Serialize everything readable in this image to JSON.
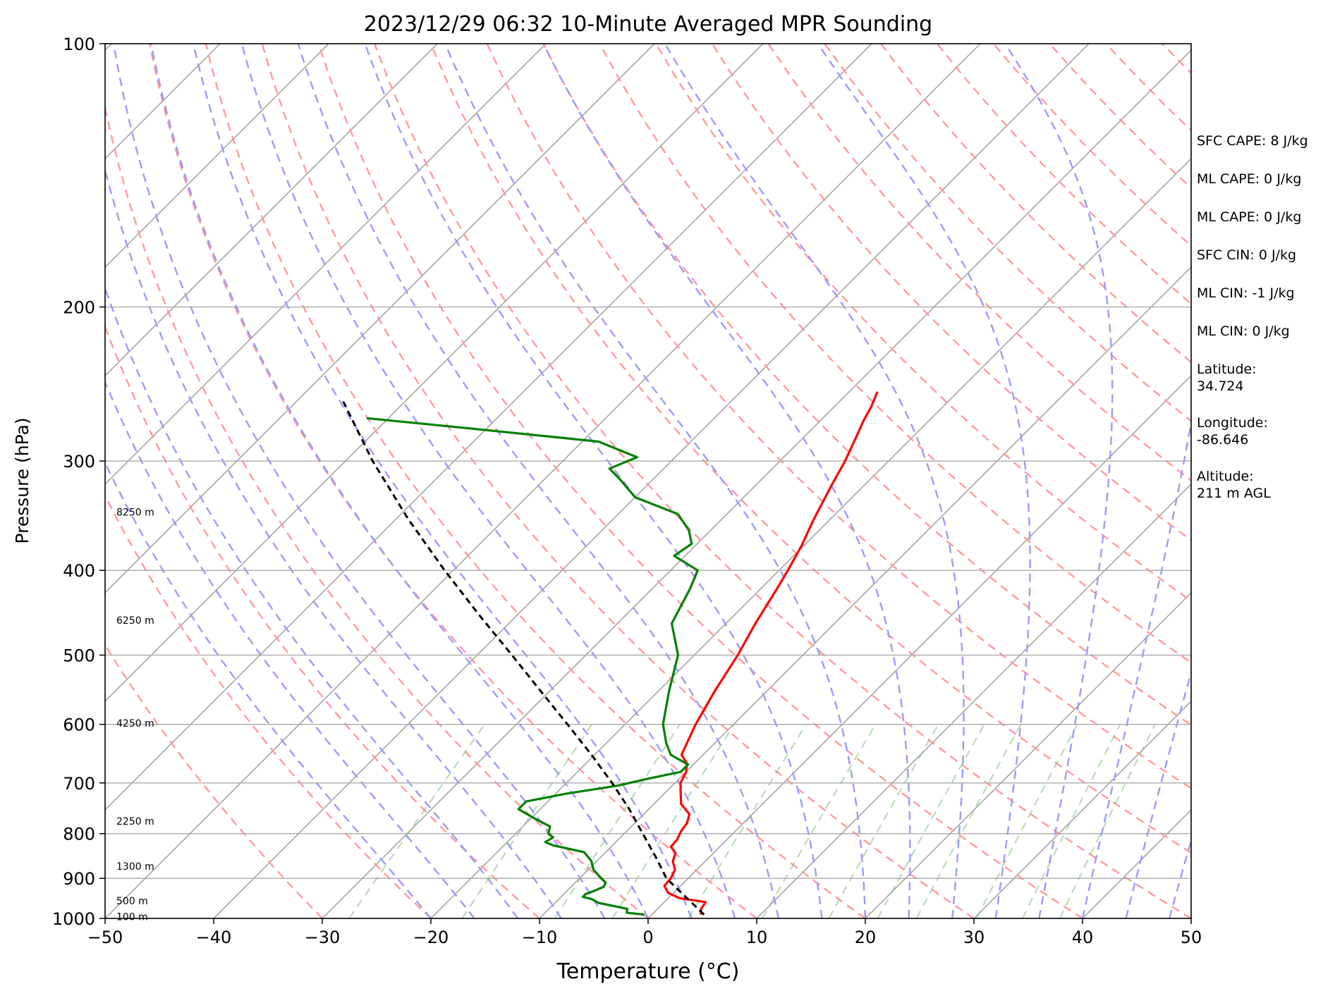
{
  "chart_data": {
    "type": "line",
    "title": "2023/12/29 06:32 10-Minute Averaged MPR Sounding",
    "xlabel": "Temperature (°C)",
    "ylabel": "Pressure (hPa)",
    "xlim": [
      -50,
      50
    ],
    "ylim": [
      1000,
      100
    ],
    "yscale": "log",
    "x_ticks": [
      -50,
      -40,
      -30,
      -20,
      -10,
      0,
      10,
      20,
      30,
      40,
      50
    ],
    "x_tick_labels": [
      "−50",
      "−40",
      "−30",
      "−20",
      "−10",
      "0",
      "10",
      "20",
      "30",
      "40",
      "50"
    ],
    "y_ticks": [
      100,
      200,
      300,
      400,
      500,
      600,
      700,
      800,
      900,
      1000
    ],
    "y_tick_labels": [
      "100",
      "200",
      "300",
      "400",
      "500",
      "600",
      "700",
      "800",
      "900",
      "1000"
    ],
    "grid": true,
    "skew_deg": 45,
    "background_lines": {
      "isotherms_color": "#9a9a9a",
      "dry_adiabats_color": "#ff9a9a",
      "moist_adiabats_color": "#9a9aff",
      "mixing_ratio_color": "#7fbf7f"
    },
    "height_labels": [
      {
        "text": "8250 m",
        "pressure": 343
      },
      {
        "text": "6250 m",
        "pressure": 456
      },
      {
        "text": "4250 m",
        "pressure": 598
      },
      {
        "text": "2250 m",
        "pressure": 774
      },
      {
        "text": "1300 m",
        "pressure": 872
      },
      {
        "text": "500 m",
        "pressure": 955
      },
      {
        "text": "100 m",
        "pressure": 995
      }
    ],
    "series": [
      {
        "color": "#ff0000",
        "role": "temperature",
        "points": [
          {
            "p": 990,
            "t": 4.5
          },
          {
            "p": 975,
            "t": 4.0
          },
          {
            "p": 958,
            "t": 3.8
          },
          {
            "p": 948,
            "t": 1.0
          },
          {
            "p": 935,
            "t": -0.5
          },
          {
            "p": 918,
            "t": -1.5
          },
          {
            "p": 900,
            "t": -1.6
          },
          {
            "p": 880,
            "t": -2.0
          },
          {
            "p": 860,
            "t": -3.0
          },
          {
            "p": 842,
            "t": -3.5
          },
          {
            "p": 828,
            "t": -4.5
          },
          {
            "p": 812,
            "t": -4.6
          },
          {
            "p": 795,
            "t": -5.0
          },
          {
            "p": 778,
            "t": -5.2
          },
          {
            "p": 760,
            "t": -5.8
          },
          {
            "p": 740,
            "t": -7.5
          },
          {
            "p": 720,
            "t": -8.5
          },
          {
            "p": 700,
            "t": -9.5
          },
          {
            "p": 680,
            "t": -10.0
          },
          {
            "p": 665,
            "t": -10.7
          },
          {
            "p": 650,
            "t": -12.0
          },
          {
            "p": 600,
            "t": -13.5
          },
          {
            "p": 550,
            "t": -14.8
          },
          {
            "p": 500,
            "t": -16.0
          },
          {
            "p": 460,
            "t": -17.3
          },
          {
            "p": 420,
            "t": -18.5
          },
          {
            "p": 400,
            "t": -19.2
          },
          {
            "p": 375,
            "t": -20.2
          },
          {
            "p": 350,
            "t": -21.5
          },
          {
            "p": 320,
            "t": -23.0
          },
          {
            "p": 300,
            "t": -24.0
          },
          {
            "p": 280,
            "t": -25.3
          },
          {
            "p": 270,
            "t": -26.0
          },
          {
            "p": 260,
            "t": -26.6
          },
          {
            "p": 250,
            "t": -27.4
          }
        ]
      },
      {
        "color": "#008000",
        "role": "dewpoint",
        "points": [
          {
            "p": 990,
            "t": -0.7
          },
          {
            "p": 985,
            "t": -2.5
          },
          {
            "p": 975,
            "t": -2.8
          },
          {
            "p": 960,
            "t": -6.0
          },
          {
            "p": 955,
            "t": -6.5
          },
          {
            "p": 950,
            "t": -7.0
          },
          {
            "p": 945,
            "t": -8.0
          },
          {
            "p": 938,
            "t": -8.0
          },
          {
            "p": 930,
            "t": -7.5
          },
          {
            "p": 920,
            "t": -7.0
          },
          {
            "p": 910,
            "t": -7.2
          },
          {
            "p": 900,
            "t": -8.0
          },
          {
            "p": 880,
            "t": -9.5
          },
          {
            "p": 860,
            "t": -10.5
          },
          {
            "p": 840,
            "t": -12.0
          },
          {
            "p": 825,
            "t": -15.5
          },
          {
            "p": 818,
            "t": -16.5
          },
          {
            "p": 808,
            "t": -16.2
          },
          {
            "p": 800,
            "t": -17.0
          },
          {
            "p": 785,
            "t": -17.5
          },
          {
            "p": 770,
            "t": -19.5
          },
          {
            "p": 750,
            "t": -22.0
          },
          {
            "p": 735,
            "t": -22.0
          },
          {
            "p": 720,
            "t": -19.0
          },
          {
            "p": 705,
            "t": -15.0
          },
          {
            "p": 693,
            "t": -13.0
          },
          {
            "p": 680,
            "t": -10.5
          },
          {
            "p": 667,
            "t": -10.5
          },
          {
            "p": 650,
            "t": -13.0
          },
          {
            "p": 630,
            "t": -14.5
          },
          {
            "p": 600,
            "t": -16.5
          },
          {
            "p": 550,
            "t": -19.0
          },
          {
            "p": 500,
            "t": -21.5
          },
          {
            "p": 460,
            "t": -25.0
          },
          {
            "p": 420,
            "t": -26.5
          },
          {
            "p": 400,
            "t": -27.5
          },
          {
            "p": 385,
            "t": -31.0
          },
          {
            "p": 373,
            "t": -30.5
          },
          {
            "p": 360,
            "t": -32.0
          },
          {
            "p": 345,
            "t": -34.5
          },
          {
            "p": 330,
            "t": -40.0
          },
          {
            "p": 315,
            "t": -43.0
          },
          {
            "p": 306,
            "t": -45.0
          },
          {
            "p": 297,
            "t": -43.5
          },
          {
            "p": 285,
            "t": -48.5
          },
          {
            "p": 275,
            "t": -62.0
          },
          {
            "p": 268,
            "t": -72.0
          }
        ]
      },
      {
        "color": "#000000",
        "role": "parcel",
        "dashed": true,
        "points": [
          {
            "p": 990,
            "t": 4.8
          },
          {
            "p": 900,
            "t": -2.0
          },
          {
            "p": 850,
            "t": -5.0
          },
          {
            "p": 800,
            "t": -8.3
          },
          {
            "p": 750,
            "t": -11.8
          },
          {
            "p": 700,
            "t": -15.8
          },
          {
            "p": 650,
            "t": -20.3
          },
          {
            "p": 600,
            "t": -25.3
          },
          {
            "p": 550,
            "t": -30.8
          },
          {
            "p": 500,
            "t": -36.8
          },
          {
            "p": 450,
            "t": -43.5
          },
          {
            "p": 400,
            "t": -50.8
          },
          {
            "p": 350,
            "t": -58.8
          },
          {
            "p": 300,
            "t": -67.5
          },
          {
            "p": 255,
            "t": -76.0
          }
        ]
      }
    ]
  },
  "info": {
    "sfc_cape": "SFC CAPE: 8 J/kg",
    "ml_cape_1": "ML CAPE: 0 J/kg",
    "ml_cape_2": "ML CAPE: 0 J/kg",
    "sfc_cin": "SFC CIN: 0 J/kg",
    "ml_cin_1": "ML CIN: -1 J/kg",
    "ml_cin_2": "ML CIN: 0 J/kg",
    "latitude": "Latitude:\n34.724",
    "longitude": "Longitude:\n-86.646",
    "altitude": "Altitude:\n211 m AGL"
  }
}
